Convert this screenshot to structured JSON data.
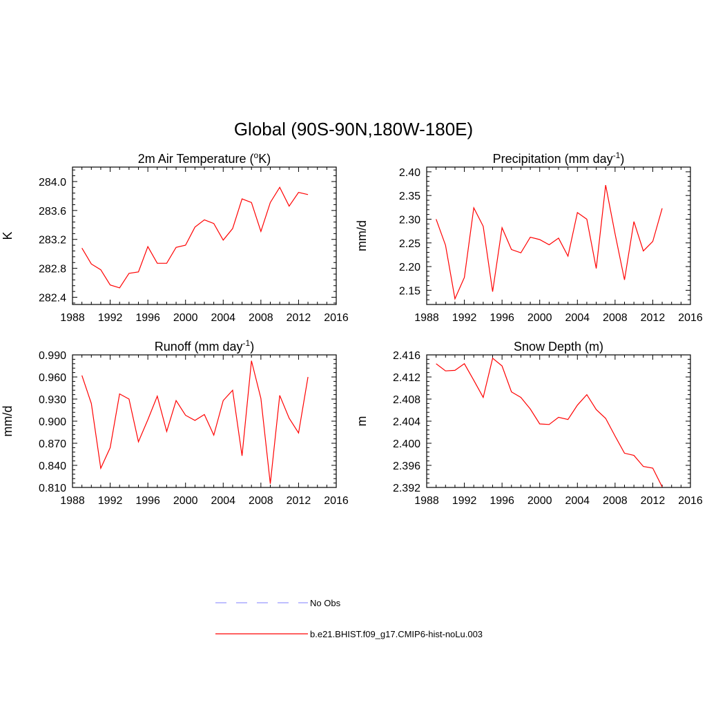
{
  "figure": {
    "title": "Global (90S-90N,180W-180E)"
  },
  "legend": {
    "items": [
      {
        "label": "No Obs",
        "color": "#9999ff",
        "dashed": true
      },
      {
        "label": "b.e21.BHIST.f09_g17.CMIP6-hist-noLu.003",
        "color": "#ff0000",
        "dashed": false
      }
    ]
  },
  "chart_data": [
    {
      "type": "line",
      "title": "2m Air Temperature (",
      "title_sup": "o",
      "title_suffix": "K)",
      "ylabel": "K",
      "xlim": [
        1988,
        2016
      ],
      "xticks": [
        1988,
        1992,
        1996,
        2000,
        2004,
        2008,
        2012,
        2016
      ],
      "ylim": [
        282.3,
        284.2
      ],
      "yticks": [
        "282.4",
        "282.8",
        "283.2",
        "283.6",
        "284.0"
      ],
      "yticks_values": [
        282.4,
        282.8,
        283.2,
        283.6,
        284.0
      ],
      "x": [
        1989,
        1990,
        1991,
        1992,
        1993,
        1994,
        1995,
        1996,
        1997,
        1998,
        1999,
        2000,
        2001,
        2002,
        2003,
        2004,
        2005,
        2006,
        2007,
        2008,
        2009,
        2010,
        2011,
        2012,
        2013
      ],
      "series": [
        {
          "color": "#ff0000",
          "values": [
            283.08,
            282.86,
            282.78,
            282.57,
            282.53,
            282.73,
            282.75,
            283.1,
            282.87,
            282.87,
            283.09,
            283.12,
            283.37,
            283.47,
            283.42,
            283.19,
            283.35,
            283.76,
            283.71,
            283.31,
            283.71,
            283.92,
            283.66,
            283.85,
            283.82
          ]
        }
      ]
    },
    {
      "type": "line",
      "title": "Precipitation (mm day",
      "title_sup": "-1",
      "title_suffix": ")",
      "ylabel": "mm/d",
      "xlim": [
        1988,
        2016
      ],
      "xticks": [
        1988,
        1992,
        1996,
        2000,
        2004,
        2008,
        2012,
        2016
      ],
      "ylim": [
        2.12,
        2.41
      ],
      "yticks": [
        "2.15",
        "2.20",
        "2.25",
        "2.30",
        "2.35",
        "2.40"
      ],
      "yticks_values": [
        2.15,
        2.2,
        2.25,
        2.3,
        2.35,
        2.4
      ],
      "x": [
        1989,
        1990,
        1991,
        1992,
        1993,
        1994,
        1995,
        1996,
        1997,
        1998,
        1999,
        2000,
        2001,
        2002,
        2003,
        2004,
        2005,
        2006,
        2007,
        2008,
        2009,
        2010,
        2011,
        2012,
        2013
      ],
      "series": [
        {
          "color": "#ff0000",
          "values": [
            2.3,
            2.245,
            2.132,
            2.177,
            2.324,
            2.285,
            2.147,
            2.282,
            2.236,
            2.229,
            2.262,
            2.257,
            2.246,
            2.26,
            2.222,
            2.314,
            2.3,
            2.196,
            2.372,
            2.269,
            2.172,
            2.295,
            2.233,
            2.253,
            2.323
          ]
        }
      ]
    },
    {
      "type": "line",
      "title": "Runoff (mm day",
      "title_sup": "-1",
      "title_suffix": ")",
      "ylabel": "mm/d",
      "xlim": [
        1988,
        2016
      ],
      "xticks": [
        1988,
        1992,
        1996,
        2000,
        2004,
        2008,
        2012,
        2016
      ],
      "ylim": [
        0.81,
        0.99
      ],
      "yticks": [
        "0.810",
        "0.840",
        "0.870",
        "0.900",
        "0.930",
        "0.960",
        "0.990"
      ],
      "yticks_values": [
        0.81,
        0.84,
        0.87,
        0.9,
        0.93,
        0.96,
        0.99
      ],
      "x": [
        1989,
        1990,
        1991,
        1992,
        1993,
        1994,
        1995,
        1996,
        1997,
        1998,
        1999,
        2000,
        2001,
        2002,
        2003,
        2004,
        2005,
        2006,
        2007,
        2008,
        2009,
        2010,
        2011,
        2012,
        2013
      ],
      "series": [
        {
          "color": "#ff0000",
          "values": [
            0.962,
            0.924,
            0.836,
            0.864,
            0.937,
            0.93,
            0.872,
            0.902,
            0.934,
            0.886,
            0.928,
            0.908,
            0.901,
            0.909,
            0.881,
            0.928,
            0.942,
            0.853,
            0.982,
            0.931,
            0.815,
            0.935,
            0.904,
            0.884,
            0.96
          ]
        }
      ]
    },
    {
      "type": "line",
      "title": "Snow Depth (m)",
      "title_sup": "",
      "title_suffix": "",
      "ylabel": "m",
      "xlim": [
        1988,
        2016
      ],
      "xticks": [
        1988,
        1992,
        1996,
        2000,
        2004,
        2008,
        2012,
        2016
      ],
      "ylim": [
        2.392,
        2.416
      ],
      "yticks": [
        "2.392",
        "2.396",
        "2.400",
        "2.404",
        "2.408",
        "2.412",
        "2.416"
      ],
      "yticks_values": [
        2.392,
        2.396,
        2.4,
        2.404,
        2.408,
        2.412,
        2.416
      ],
      "x": [
        1989,
        1990,
        1991,
        1992,
        1993,
        1994,
        1995,
        1996,
        1997,
        1998,
        1999,
        2000,
        2001,
        2002,
        2003,
        2004,
        2005,
        2006,
        2007,
        2008,
        2009,
        2010,
        2011,
        2012,
        2013
      ],
      "series": [
        {
          "color": "#ff0000",
          "values": [
            2.4144,
            2.4131,
            2.4132,
            2.4144,
            2.4114,
            2.4083,
            2.4154,
            2.414,
            2.4093,
            2.4083,
            2.4062,
            2.4035,
            2.4034,
            2.4047,
            2.4043,
            2.4069,
            2.4088,
            2.4061,
            2.4045,
            2.4013,
            2.3982,
            2.3978,
            2.3958,
            2.3955,
            2.3921
          ]
        }
      ]
    }
  ]
}
